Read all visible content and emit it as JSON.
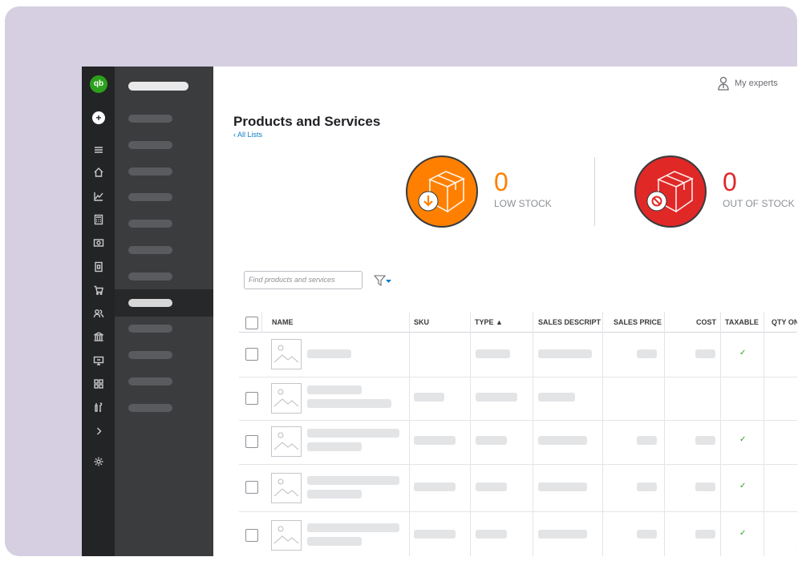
{
  "header": {
    "my_experts": "My experts",
    "logo_text": "qb"
  },
  "rail": {
    "icons": [
      "menu-icon",
      "home-icon",
      "chart-icon",
      "calculator-icon",
      "dollar-card-icon",
      "receipt-icon",
      "cart-icon",
      "people-icon",
      "bank-icon",
      "monitor-icon",
      "grid-icon",
      "tools-icon",
      "chevron-right-icon",
      "gear-icon"
    ]
  },
  "page": {
    "title": "Products and Services",
    "back_link": "‹ All Lists"
  },
  "stats": {
    "low_stock": {
      "value": "0",
      "label": "LOW STOCK",
      "color": "#ff8000"
    },
    "out_of_stock": {
      "value": "0",
      "label": "OUT OF STOCK",
      "color": "#e02827"
    }
  },
  "search": {
    "placeholder": "Find products and services"
  },
  "table": {
    "columns": [
      "NAME",
      "SKU",
      "TYPE ▲",
      "SALES DESCRIPT",
      "SALES PRICE",
      "COST",
      "TAXABLE",
      "QTY ON"
    ],
    "rows": [
      {
        "taxable": "✓"
      },
      {
        "taxable": ""
      },
      {
        "taxable": "✓"
      },
      {
        "taxable": "✓"
      },
      {
        "taxable": "✓"
      }
    ]
  },
  "colors": {
    "accent": "#2ca01c",
    "link": "#0d7bc4",
    "sidebar": "#232425",
    "nav": "#3b3c3e"
  }
}
